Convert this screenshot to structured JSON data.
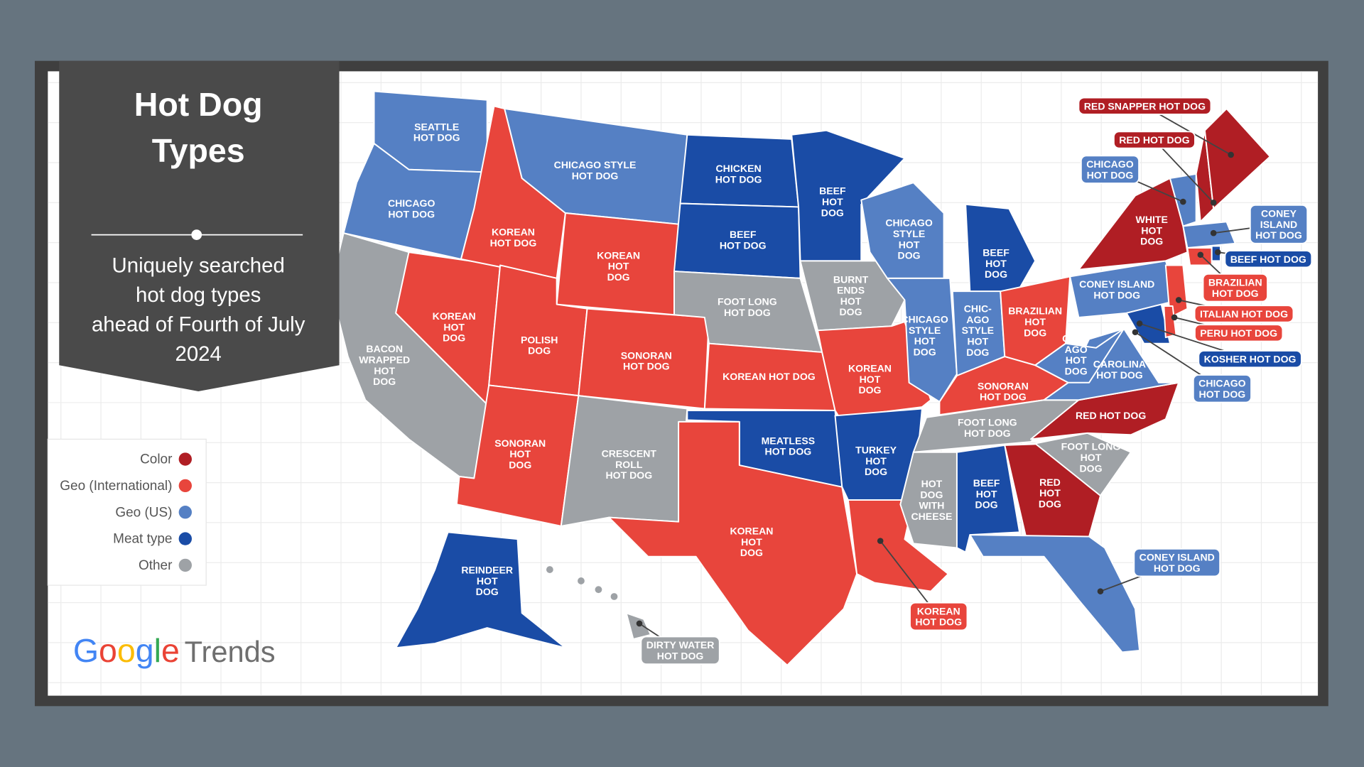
{
  "panel": {
    "title_lines": [
      "Hot Dog",
      "Types"
    ],
    "subtitle_lines": [
      "Uniquely searched",
      "hot dog types",
      "ahead of Fourth of July",
      "2024"
    ]
  },
  "colors": {
    "color": "#b01e24",
    "geo_international": "#e8453c",
    "geo_us": "#5580c4",
    "meat_type": "#1a4ca6",
    "other": "#9ea2a6",
    "background": "#66747f",
    "panel": "#4a4a4a"
  },
  "legend": [
    {
      "label": "Color",
      "category": "color"
    },
    {
      "label": "Geo (International)",
      "category": "geo_international"
    },
    {
      "label": "Geo (US)",
      "category": "geo_us"
    },
    {
      "label": "Meat type",
      "category": "meat_type"
    },
    {
      "label": "Other",
      "category": "other"
    }
  ],
  "branding": {
    "google": "Google",
    "trends": "Trends"
  },
  "states": [
    {
      "label": "SEATTLE\nHOT DOG",
      "category": "geo_us"
    },
    {
      "label": "CHICAGO\nHOT DOG",
      "category": "geo_us"
    },
    {
      "label": "BACON\nWRAPPED\nHOT\nDOG",
      "category": "other"
    },
    {
      "label": "KOREAN\nHOT\nDOG",
      "category": "geo_international"
    },
    {
      "label": "KOREAN\nHOT DOG",
      "category": "geo_international"
    },
    {
      "label": "CHICAGO STYLE\nHOT DOG",
      "category": "geo_us"
    },
    {
      "label": "KOREAN\nHOT\nDOG",
      "category": "geo_international"
    },
    {
      "label": "POLISH\nDOG",
      "category": "geo_international"
    },
    {
      "label": "SONORAN\nHOT DOG",
      "category": "geo_international"
    },
    {
      "label": "SONORAN\nHOT\nDOG",
      "category": "geo_international"
    },
    {
      "label": "CRESCENT\nROLL\nHOT DOG",
      "category": "other"
    },
    {
      "label": "CHICKEN\nHOT DOG",
      "category": "meat_type"
    },
    {
      "label": "BEEF\nHOT DOG",
      "category": "meat_type"
    },
    {
      "label": "FOOT LONG\nHOT DOG",
      "category": "other"
    },
    {
      "label": "KOREAN HOT DOG",
      "category": "geo_international"
    },
    {
      "label": "MEATLESS\nHOT DOG",
      "category": "meat_type"
    },
    {
      "label": "KOREAN\nHOT\nDOG",
      "category": "geo_international"
    },
    {
      "label": "BEEF\nHOT\nDOG",
      "category": "meat_type"
    },
    {
      "label": "BURNT\nENDS\nHOT\nDOG",
      "category": "other"
    },
    {
      "label": "KOREAN\nHOT\nDOG",
      "category": "geo_international"
    },
    {
      "label": "TURKEY\nHOT\nDOG",
      "category": "meat_type"
    },
    {
      "label": "",
      "category": "geo_international"
    },
    {
      "label": "CHICAGO\nSTYLE\nHOT\nDOG",
      "category": "geo_us"
    },
    {
      "label": "CHICAGO\nSTYLE\nHOT\nDOG",
      "category": "geo_us"
    },
    {
      "label": "BEEF\nHOT\nDOG",
      "category": "meat_type"
    },
    {
      "label": "CHIC-\nAGO\nSTYLE\nHOT\nDOG",
      "category": "geo_us"
    },
    {
      "label": "BRAZILIAN\nHOT\nDOG",
      "category": "geo_international"
    },
    {
      "label": "SONORAN\nHOT DOG",
      "category": "geo_international"
    },
    {
      "label": "FOOT LONG\nHOT DOG",
      "category": "other"
    },
    {
      "label": "HOT\nDOG\nWITH\nCHEESE",
      "category": "other"
    },
    {
      "label": "BEEF\nHOT\nDOG",
      "category": "meat_type"
    },
    {
      "label": "RED\nHOT\nDOG",
      "category": "color"
    },
    {
      "label": "",
      "category": "geo_us"
    },
    {
      "label": "FOOT LONG\nHOT\nDOG",
      "category": "other"
    },
    {
      "label": "RED HOT DOG",
      "category": "color"
    },
    {
      "label": "CAROLINA\nHOT DOG",
      "category": "geo_us"
    },
    {
      "label": "CHIC-\nAGO\nHOT\nDOG",
      "category": "geo_us"
    },
    {
      "label": "CONEY ISLAND\nHOT DOG",
      "category": "geo_us"
    },
    {
      "label": "WHITE\nHOT\nDOG",
      "category": "color"
    },
    {
      "label": "",
      "category": "geo_us"
    },
    {
      "label": "",
      "category": "color"
    },
    {
      "label": "",
      "category": "color"
    },
    {
      "label": "",
      "category": "geo_us"
    },
    {
      "label": "",
      "category": "geo_international"
    },
    {
      "label": "",
      "category": "meat_type"
    },
    {
      "label": "",
      "category": "geo_international"
    },
    {
      "label": "",
      "category": "meat_type"
    },
    {
      "label": "",
      "category": "geo_international"
    },
    {
      "label": "REINDEER\nHOT\nDOG",
      "category": "meat_type"
    },
    {
      "label": "",
      "category": "other"
    }
  ],
  "callouts": [
    {
      "label": "RED SNAPPER HOT DOG",
      "category": "color"
    },
    {
      "label": "RED HOT DOG",
      "category": "color"
    },
    {
      "label": "CHICAGO\nHOT DOG",
      "category": "geo_us"
    },
    {
      "label": "CONEY\nISLAND\nHOT DOG",
      "category": "geo_us"
    },
    {
      "label": "BEEF HOT DOG",
      "category": "meat_type"
    },
    {
      "label": "BRAZILIAN\nHOT DOG",
      "category": "geo_international"
    },
    {
      "label": "ITALIAN HOT DOG",
      "category": "geo_international"
    },
    {
      "label": "PERU HOT DOG",
      "category": "geo_international"
    },
    {
      "label": "KOSHER HOT DOG",
      "category": "meat_type"
    },
    {
      "label": "CHICAGO\nHOT DOG",
      "category": "geo_us"
    },
    {
      "label": "CONEY ISLAND\nHOT DOG",
      "category": "geo_us"
    },
    {
      "label": "KOREAN\nHOT DOG",
      "category": "geo_international"
    },
    {
      "label": "DIRTY WATER\nHOT DOG",
      "category": "other"
    }
  ]
}
